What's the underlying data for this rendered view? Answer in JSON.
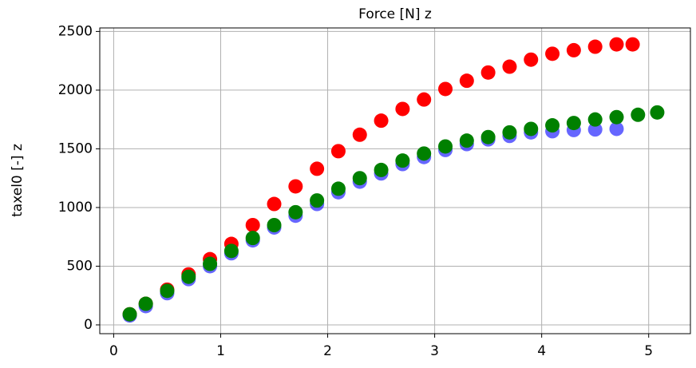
{
  "chart_data": {
    "type": "scatter",
    "title": "Force [N] z",
    "y_label": "taxel0 [-] z",
    "xlim": [
      -0.13,
      5.39
    ],
    "ylim": [
      -75,
      2530
    ],
    "xticks": [
      0,
      1,
      2,
      3,
      4,
      5
    ],
    "yticks": [
      0,
      500,
      1000,
      1500,
      2000,
      2500
    ],
    "grid": true,
    "series": [
      {
        "color": "#ff0000",
        "opacity": 1,
        "x": [
          0.15,
          0.3,
          0.5,
          0.7,
          0.9,
          1.1,
          1.3,
          1.5,
          1.7,
          1.9,
          2.1,
          2.3,
          2.5,
          2.7,
          2.9,
          3.1,
          3.3,
          3.5,
          3.7,
          3.9,
          4.1,
          4.3,
          4.5,
          4.7,
          4.85
        ],
        "values": [
          90,
          180,
          300,
          430,
          560,
          690,
          850,
          1030,
          1180,
          1330,
          1480,
          1620,
          1740,
          1840,
          1920,
          2010,
          2080,
          2150,
          2200,
          2260,
          2310,
          2340,
          2370,
          2390,
          2390
        ]
      },
      {
        "color": "#0000ff",
        "opacity": 0.6,
        "x": [
          0.15,
          0.3,
          0.5,
          0.7,
          0.9,
          1.1,
          1.3,
          1.5,
          1.7,
          1.9,
          2.1,
          2.3,
          2.5,
          2.7,
          2.9,
          3.1,
          3.3,
          3.5,
          3.7,
          3.9,
          4.1,
          4.3,
          4.5,
          4.7
        ],
        "values": [
          80,
          160,
          270,
          390,
          500,
          610,
          720,
          830,
          930,
          1030,
          1130,
          1220,
          1290,
          1370,
          1430,
          1490,
          1540,
          1580,
          1610,
          1640,
          1650,
          1660,
          1665,
          1670
        ]
      },
      {
        "color": "#008000",
        "opacity": 1,
        "x": [
          0.15,
          0.3,
          0.5,
          0.7,
          0.9,
          1.1,
          1.3,
          1.5,
          1.7,
          1.9,
          2.1,
          2.3,
          2.5,
          2.7,
          2.9,
          3.1,
          3.3,
          3.5,
          3.7,
          3.9,
          4.1,
          4.3,
          4.5,
          4.7,
          4.9,
          5.08
        ],
        "values": [
          90,
          180,
          290,
          410,
          520,
          630,
          740,
          850,
          960,
          1060,
          1160,
          1250,
          1320,
          1400,
          1460,
          1520,
          1570,
          1600,
          1640,
          1670,
          1700,
          1720,
          1750,
          1770,
          1790,
          1810
        ]
      }
    ]
  }
}
